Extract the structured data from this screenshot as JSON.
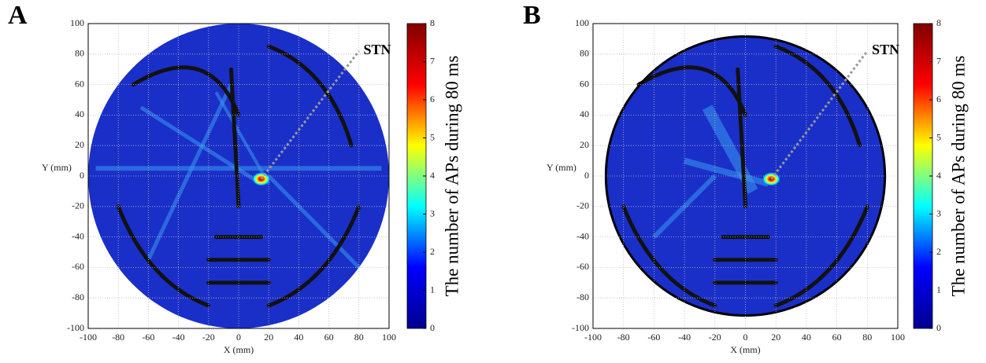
{
  "chart_data": [
    {
      "type": "heatmap",
      "panel_label": "A",
      "annotation": "STN",
      "xlabel": "X (mm)",
      "ylabel": "Y (mm)",
      "xlim": [
        -100,
        100
      ],
      "ylim": [
        -100,
        100
      ],
      "xticks": [
        -100,
        -80,
        -60,
        -40,
        -20,
        0,
        20,
        40,
        60,
        80,
        100
      ],
      "yticks": [
        -100,
        -80,
        -60,
        -40,
        -20,
        0,
        20,
        40,
        60,
        80,
        100
      ],
      "grid": true,
      "colormap": "jet",
      "outline_circle": false,
      "colorbar": {
        "label": "The number of APs during 80 ms",
        "lim": [
          0,
          8
        ],
        "ticks": [
          0,
          1,
          2,
          3,
          4,
          5,
          6,
          7,
          8
        ]
      }
    },
    {
      "type": "heatmap",
      "panel_label": "B",
      "annotation": "STN",
      "xlabel": "X (mm)",
      "ylabel": "Y (mm)",
      "xlim": [
        -100,
        100
      ],
      "ylim": [
        -100,
        100
      ],
      "xticks": [
        -100,
        -80,
        -60,
        -40,
        -20,
        0,
        20,
        40,
        60,
        80,
        100
      ],
      "yticks": [
        -100,
        -80,
        -60,
        -40,
        -20,
        0,
        20,
        40,
        60,
        80,
        100
      ],
      "grid": true,
      "colormap": "jet",
      "outline_circle": true,
      "colorbar": {
        "label": "The number of APs during 80 ms",
        "lim": [
          0,
          8
        ],
        "ticks": [
          0,
          1,
          2,
          3,
          4,
          5,
          6,
          7,
          8
        ]
      }
    }
  ]
}
